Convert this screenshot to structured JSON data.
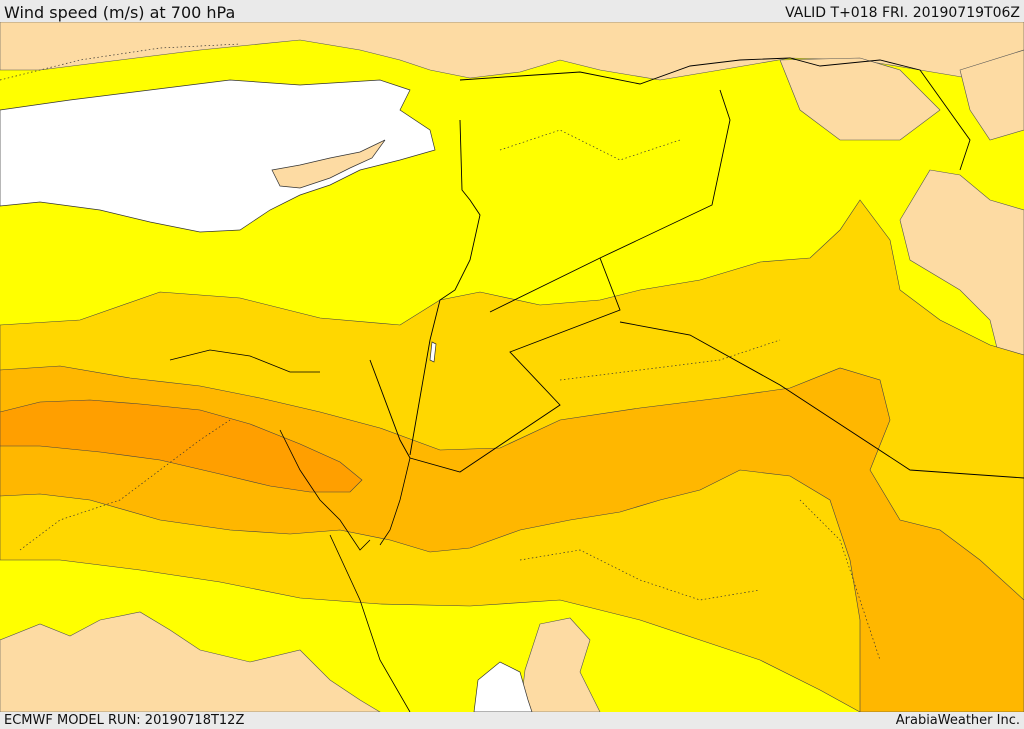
{
  "header": {
    "title": "Wind speed (m/s) at 700 hPa",
    "valid_time": "VALID T+018 FRI. 20190719T06Z"
  },
  "footer": {
    "model_run": "ECMWF MODEL RUN: 20190718T12Z",
    "credit": "ArabiaWeather Inc."
  },
  "map": {
    "variable": "wind speed",
    "units": "m/s",
    "level": "700 hPa",
    "colors": {
      "sea": "#ffffff",
      "lowest": "#fddba3",
      "low": "#ffff00",
      "moderate": "#ffd700",
      "high": "#ffb700",
      "highest": "#ff9f00",
      "borders": "#000000"
    }
  }
}
